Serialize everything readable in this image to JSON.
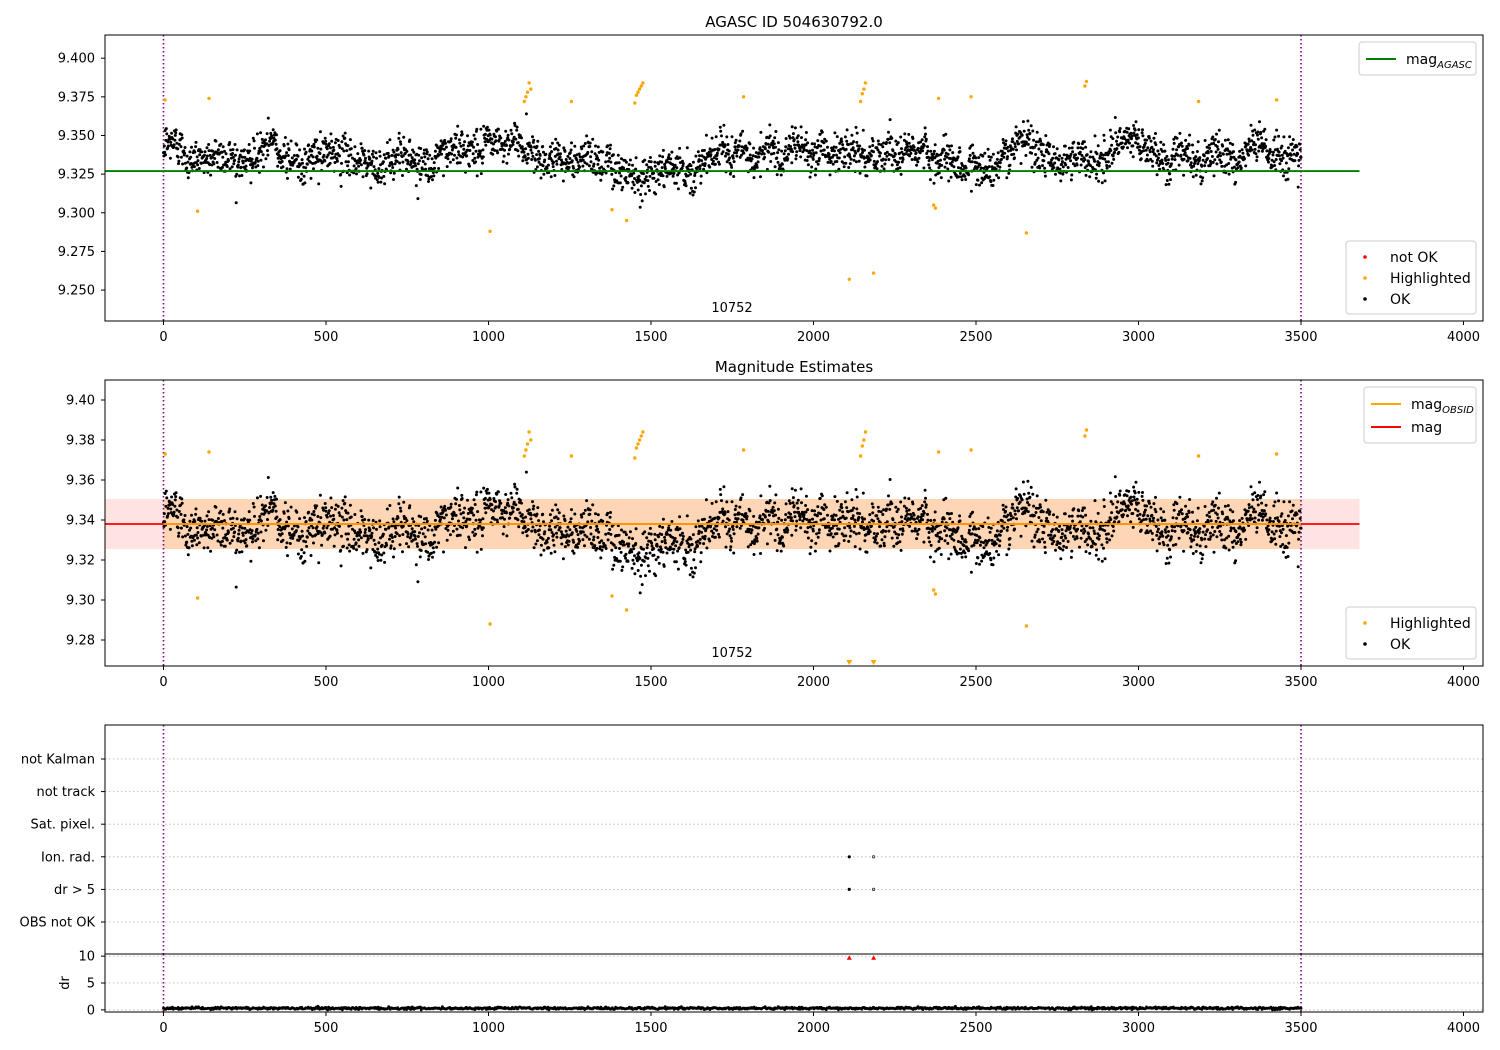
{
  "figure": {
    "background": "#ffffff"
  },
  "chart_data": [
    {
      "type": "scatter",
      "title": "AGASC ID 504630792.0",
      "xlim": [
        -180,
        4060
      ],
      "ylim": [
        9.23,
        9.415
      ],
      "xticks": [
        0,
        500,
        1000,
        1500,
        2000,
        2500,
        3000,
        3500,
        4000
      ],
      "yticks": [
        9.25,
        9.275,
        9.3,
        9.325,
        9.35,
        9.375,
        9.4
      ],
      "ytick_labels": [
        "9.250",
        "9.275",
        "9.300",
        "9.325",
        "9.350",
        "9.375",
        "9.400"
      ],
      "obsid_label": "10752",
      "vlines": [
        0,
        3500
      ],
      "hlines": [
        {
          "y": 9.327,
          "x": [
            -180,
            3680
          ],
          "color": "#008000",
          "name": "mag_AGASC"
        }
      ],
      "band": null,
      "legend_top": {
        "position": "top-right",
        "items": [
          {
            "label_main": "mag",
            "label_sub": "AGASC",
            "color": "#008000",
            "kind": "line"
          }
        ]
      },
      "legend_bottom": {
        "position": "lower-right",
        "items": [
          {
            "label": "not OK",
            "color": "#ff0000"
          },
          {
            "label": "Highlighted",
            "color": "#ffa500"
          },
          {
            "label": "OK",
            "color": "#000000"
          }
        ]
      },
      "series": [
        {
          "name": "OK",
          "color": "#000000",
          "mode": "noise",
          "n_points": 2800,
          "x_range": [
            0,
            3500
          ],
          "base": 9.338,
          "spread": 0.011
        },
        {
          "name": "Highlighted",
          "color": "#ffa500",
          "points": [
            [
              5,
              9.373
            ],
            [
              105,
              9.301
            ],
            [
              140,
              9.374
            ],
            [
              1005,
              9.288
            ],
            [
              1110,
              9.372
            ],
            [
              1115,
              9.375
            ],
            [
              1120,
              9.378
            ],
            [
              1125,
              9.384
            ],
            [
              1130,
              9.38
            ],
            [
              1255,
              9.372
            ],
            [
              1380,
              9.302
            ],
            [
              1425,
              9.295
            ],
            [
              1450,
              9.371
            ],
            [
              1455,
              9.376
            ],
            [
              1460,
              9.378
            ],
            [
              1465,
              9.38
            ],
            [
              1470,
              9.382
            ],
            [
              1475,
              9.384
            ],
            [
              1785,
              9.375
            ],
            [
              2110,
              9.257
            ],
            [
              2145,
              9.372
            ],
            [
              2150,
              9.377
            ],
            [
              2155,
              9.38
            ],
            [
              2160,
              9.384
            ],
            [
              2185,
              9.261
            ],
            [
              2370,
              9.305
            ],
            [
              2375,
              9.303
            ],
            [
              2385,
              9.374
            ],
            [
              2485,
              9.375
            ],
            [
              2655,
              9.287
            ],
            [
              2835,
              9.382
            ],
            [
              2840,
              9.385
            ],
            [
              3185,
              9.372
            ],
            [
              3425,
              9.373
            ]
          ]
        }
      ]
    },
    {
      "type": "scatter",
      "title": "Magnitude Estimates",
      "xlim": [
        -180,
        4060
      ],
      "ylim": [
        9.267,
        9.41
      ],
      "xticks": [
        0,
        500,
        1000,
        1500,
        2000,
        2500,
        3000,
        3500,
        4000
      ],
      "yticks": [
        9.28,
        9.3,
        9.32,
        9.34,
        9.36,
        9.38,
        9.4
      ],
      "ytick_labels": [
        "9.28",
        "9.30",
        "9.32",
        "9.34",
        "9.36",
        "9.38",
        "9.40"
      ],
      "obsid_label": "10752",
      "vlines": [
        0,
        3500
      ],
      "hlines": [
        {
          "y": 9.338,
          "x": [
            -180,
            3680
          ],
          "color": "#ff0000",
          "name": "mag"
        },
        {
          "y": 9.338,
          "x": [
            0,
            3500
          ],
          "color": "#ffa500",
          "name": "mag_OBSID"
        }
      ],
      "band": {
        "y": [
          9.3255,
          9.3505
        ],
        "x": [
          -180,
          3680
        ],
        "color": "#ff0000",
        "opacity": 0.11,
        "inner": {
          "x": [
            0,
            3500
          ],
          "color": "#ffa500",
          "opacity": 0.2
        }
      },
      "legend_top": {
        "position": "top-right",
        "items": [
          {
            "label_main": "mag",
            "label_sub": "OBSID",
            "color": "#ffa500",
            "kind": "line"
          },
          {
            "label_main": "mag",
            "label_sub": "",
            "color": "#ff0000",
            "kind": "line"
          }
        ]
      },
      "legend_bottom": {
        "position": "lower-right",
        "items": [
          {
            "label": "Highlighted",
            "color": "#ffa500"
          },
          {
            "label": "OK",
            "color": "#000000"
          }
        ]
      },
      "off_scale_markers": {
        "color": "#ffa500",
        "x": [
          2110,
          2185
        ]
      },
      "series": [
        {
          "name": "OK",
          "color": "#000000",
          "mode": "noise",
          "n_points": 2800,
          "x_range": [
            0,
            3500
          ],
          "base": 9.338,
          "spread": 0.011
        },
        {
          "name": "Highlighted",
          "color": "#ffa500",
          "points": [
            [
              5,
              9.373
            ],
            [
              105,
              9.301
            ],
            [
              140,
              9.374
            ],
            [
              1005,
              9.288
            ],
            [
              1110,
              9.372
            ],
            [
              1115,
              9.375
            ],
            [
              1120,
              9.378
            ],
            [
              1125,
              9.384
            ],
            [
              1130,
              9.38
            ],
            [
              1255,
              9.372
            ],
            [
              1380,
              9.302
            ],
            [
              1425,
              9.295
            ],
            [
              1450,
              9.371
            ],
            [
              1455,
              9.376
            ],
            [
              1460,
              9.378
            ],
            [
              1465,
              9.38
            ],
            [
              1470,
              9.382
            ],
            [
              1475,
              9.384
            ],
            [
              1785,
              9.375
            ],
            [
              2145,
              9.372
            ],
            [
              2150,
              9.377
            ],
            [
              2155,
              9.38
            ],
            [
              2160,
              9.384
            ],
            [
              2370,
              9.305
            ],
            [
              2375,
              9.303
            ],
            [
              2385,
              9.374
            ],
            [
              2485,
              9.375
            ],
            [
              2655,
              9.287
            ],
            [
              2835,
              9.382
            ],
            [
              2840,
              9.385
            ],
            [
              3185,
              9.372
            ],
            [
              3425,
              9.373
            ]
          ]
        }
      ]
    },
    {
      "type": "scatter",
      "title": "",
      "xlim": [
        -180,
        4060
      ],
      "categories": [
        "not Kalman",
        "not track",
        "Sat. pixel.",
        "Ion. rad.",
        "dr > 5",
        "OBS not OK"
      ],
      "vlines": [
        0,
        3500
      ],
      "flag_points": [
        {
          "category": "Ion. rad.",
          "x": [
            2110,
            2185
          ]
        },
        {
          "category": "dr > 5",
          "x": [
            2110,
            2185
          ]
        }
      ]
    },
    {
      "type": "scatter",
      "title": "",
      "ylabel": "dr",
      "xlim": [
        -180,
        4060
      ],
      "ylim": [
        -0.4,
        10.4
      ],
      "yticks": [
        0,
        5,
        10
      ],
      "xticks": [
        0,
        500,
        1000,
        1500,
        2000,
        2500,
        3000,
        3500,
        4000
      ],
      "vlines": [
        0,
        3500
      ],
      "series": [
        {
          "name": "OK",
          "color": "#000000",
          "mode": "noise",
          "n_points": 1400,
          "x_range": [
            0,
            3500
          ],
          "base": 0.3,
          "spread": 0.12
        },
        {
          "name": "not OK",
          "color": "#ff0000",
          "points": [
            [
              2110,
              9.7
            ],
            [
              2185,
              9.7
            ]
          ]
        }
      ]
    }
  ]
}
